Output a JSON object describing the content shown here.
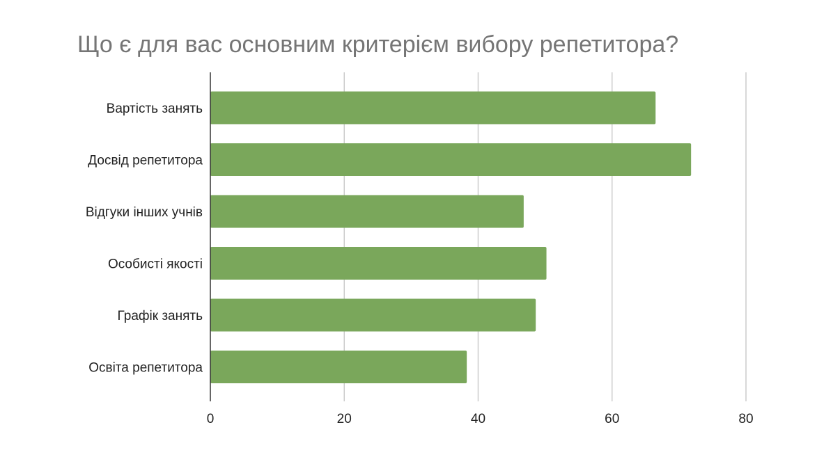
{
  "chart_data": {
    "type": "bar",
    "orientation": "horizontal",
    "title": "Що є для вас основним критерієм вибору репетитора?",
    "xlabel": "",
    "ylabel": "",
    "categories": [
      "Вартість занять",
      "Досвід репетитора",
      "Відгуки інших учнів",
      "Особисті якості",
      "Графік занять",
      "Освіта репетитора"
    ],
    "values": [
      66.5,
      71.8,
      46.8,
      50.2,
      48.6,
      38.3
    ],
    "xlim": [
      0,
      80
    ],
    "xticks": [
      "0",
      "20",
      "40",
      "60",
      "80"
    ],
    "grid": true,
    "legend": "none",
    "bar_color": "#7aa75b",
    "grid_color": "#cccccc",
    "axis_color": "#333333",
    "title_color": "#757575"
  }
}
